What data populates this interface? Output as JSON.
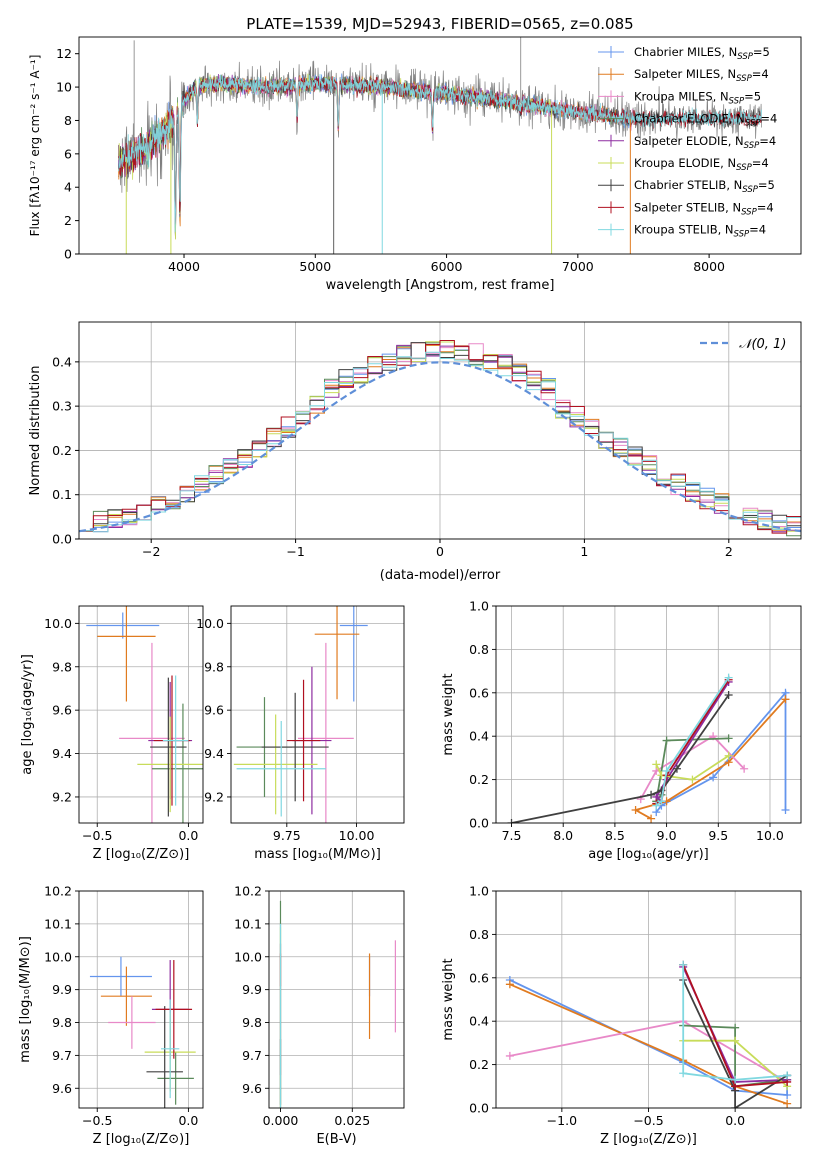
{
  "colors": {
    "chab_miles": "#6495ed",
    "salp_miles": "#e07b20",
    "krou_miles": "#e889c8",
    "chab_elodie": "#5b8a5b",
    "salp_elodie": "#8e2da0",
    "krou_elodie": "#c8dc5a",
    "chab_stelib": "#404040",
    "salp_stelib": "#b01020",
    "krou_stelib": "#80d8e0",
    "spectrum_gray": "#7f7f7f"
  },
  "chart_data": [
    {
      "type": "line",
      "id": "spectrum",
      "title": "PLATE=1539, MJD=52943, FIBERID=0565, z=0.085",
      "xlabel": "wavelength [Angstrom, rest frame]",
      "ylabel": "Flux [fλ10⁻¹⁷ erg cm⁻² s⁻¹ A⁻¹]",
      "xlim": [
        3200,
        8700
      ],
      "ylim": [
        0,
        13
      ],
      "xticks": [
        "4000",
        "5000",
        "6000",
        "7000",
        "8000"
      ],
      "yticks": [
        "0",
        "2",
        "4",
        "6",
        "8",
        "10",
        "12"
      ],
      "legend_position": "top-right",
      "legend": [
        {
          "label": "Chabrier MILES, N",
          "sub": "SSP",
          "suffix": "=5",
          "color": "chab_miles"
        },
        {
          "label": "Salpeter MILES, N",
          "sub": "SSP",
          "suffix": "=4",
          "color": "salp_miles"
        },
        {
          "label": "Kroupa MILES, N",
          "sub": "SSP",
          "suffix": "=5",
          "color": "krou_miles"
        },
        {
          "label": "Chabrier ELODIE, N",
          "sub": "SSP",
          "suffix": "=4",
          "color": "chab_elodie"
        },
        {
          "label": "Salpeter ELODIE, N",
          "sub": "SSP",
          "suffix": "=4",
          "color": "salp_elodie"
        },
        {
          "label": "Kroupa ELODIE, N",
          "sub": "SSP",
          "suffix": "=4",
          "color": "krou_elodie"
        },
        {
          "label": "Chabrier STELIB, N",
          "sub": "SSP",
          "suffix": "=5",
          "color": "chab_stelib"
        },
        {
          "label": "Salpeter STELIB, N",
          "sub": "SSP",
          "suffix": "=4",
          "color": "salp_stelib"
        },
        {
          "label": "Kroupa STELIB, N",
          "sub": "SSP",
          "suffix": "=4",
          "color": "krou_stelib"
        }
      ],
      "continuum": [
        [
          3500,
          5.5
        ],
        [
          3700,
          6.3
        ],
        [
          3900,
          7.8
        ],
        [
          4000,
          9.2
        ],
        [
          4100,
          10.1
        ],
        [
          4300,
          10.2
        ],
        [
          4600,
          10.0
        ],
        [
          5000,
          10.2
        ],
        [
          5500,
          10.0
        ],
        [
          6000,
          9.6
        ],
        [
          6500,
          9.1
        ],
        [
          7000,
          8.5
        ],
        [
          7400,
          8.1
        ]
      ],
      "absorption_lines": [
        [
          3934,
          1.5
        ],
        [
          3969,
          2.5
        ],
        [
          4102,
          7.8
        ],
        [
          4861,
          8.2
        ],
        [
          5175,
          7.5
        ],
        [
          5893,
          7.4
        ],
        [
          6563,
          8.6
        ]
      ],
      "spikes_down": [
        [
          3560,
          0
        ],
        [
          3900,
          0
        ],
        [
          5140,
          0
        ],
        [
          5510,
          0
        ],
        [
          6800,
          0
        ],
        [
          7400,
          0
        ]
      ],
      "spikes_up": [
        [
          3620,
          12.8
        ],
        [
          6565,
          13.0
        ],
        [
          7160,
          11.2
        ]
      ]
    },
    {
      "type": "histogram",
      "id": "residuals",
      "xlabel": "(data-model)/error",
      "ylabel": "Normed distribution",
      "xlim": [
        -2.5,
        2.5
      ],
      "ylim": [
        0,
        0.49
      ],
      "xticks": [
        "−2",
        "−1",
        "0",
        "1",
        "2"
      ],
      "yticks": [
        "0.0",
        "0.1",
        "0.2",
        "0.3",
        "0.4"
      ],
      "legend_position": "top-right",
      "legend_label": "𝒩(0, 1)",
      "bins": 50,
      "seeds": [
        11,
        23,
        37,
        41,
        53,
        67,
        79,
        83,
        97
      ]
    },
    {
      "type": "scatter",
      "id": "age_vs_z",
      "xlabel": "Z [log₁₀(Z/Z⊙)]",
      "ylabel": "age  [log₁₀(age/yr)]",
      "xlim": [
        -0.6,
        0.08
      ],
      "ylim": [
        9.08,
        10.08
      ],
      "xticks": [
        {
          "v": -0.5,
          "t": "−0.5"
        },
        {
          "v": 0.0,
          "t": "0.0"
        }
      ],
      "yticks": [
        {
          "v": 9.2,
          "t": "9.2"
        },
        {
          "v": 9.4,
          "t": "9.4"
        },
        {
          "v": 9.6,
          "t": "9.6"
        },
        {
          "v": 9.8,
          "t": "9.8"
        },
        {
          "v": 10.0,
          "t": "10.0"
        }
      ],
      "points": [
        {
          "c": "chab_miles",
          "x": -0.36,
          "xe": 0.2,
          "y": 9.99,
          "ye": 0.06
        },
        {
          "c": "salp_miles",
          "x": -0.34,
          "xe": 0.16,
          "y": 9.94,
          "ye": 0.3
        },
        {
          "c": "krou_miles",
          "x": -0.2,
          "xe": 0.18,
          "y": 9.47,
          "ye": 0.44
        },
        {
          "c": "chab_elodie",
          "x": -0.03,
          "xe": 0.17,
          "y": 9.33,
          "ye": 0.3
        },
        {
          "c": "salp_elodie",
          "x": -0.1,
          "xe": 0.12,
          "y": 9.46,
          "ye": 0.27
        },
        {
          "c": "krou_elodie",
          "x": -0.1,
          "xe": 0.18,
          "y": 9.35,
          "ye": 0.22
        },
        {
          "c": "chab_stelib",
          "x": -0.11,
          "xe": 0.1,
          "y": 9.43,
          "ye": 0.32
        },
        {
          "c": "salp_stelib",
          "x": -0.09,
          "xe": 0.1,
          "y": 9.46,
          "ye": 0.3
        },
        {
          "c": "krou_stelib",
          "x": -0.07,
          "xe": 0.07,
          "y": 9.46,
          "ye": 0.3
        }
      ]
    },
    {
      "type": "scatter",
      "id": "age_vs_mass",
      "xlabel": "mass [log₁₀(M/M⊙)]",
      "ylabel": "",
      "xlim": [
        9.55,
        10.17
      ],
      "ylim": [
        9.08,
        10.08
      ],
      "xticks": [
        {
          "v": 9.75,
          "t": "9.75"
        },
        {
          "v": 10.0,
          "t": "10.00"
        }
      ],
      "yticks": [
        {
          "v": 9.2,
          "t": "9.2"
        },
        {
          "v": 9.4,
          "t": "9.4"
        },
        {
          "v": 9.6,
          "t": "9.6"
        },
        {
          "v": 9.8,
          "t": "9.8"
        },
        {
          "v": 10.0,
          "t": "10.0"
        }
      ],
      "points": [
        {
          "c": "chab_miles",
          "x": 9.99,
          "xe": 0.05,
          "y": 9.99,
          "ye": 0.35
        },
        {
          "c": "salp_miles",
          "x": 9.93,
          "xe": 0.08,
          "y": 9.95,
          "ye": 0.3
        },
        {
          "c": "krou_miles",
          "x": 9.89,
          "xe": 0.1,
          "y": 9.47,
          "ye": 0.44
        },
        {
          "c": "chab_elodie",
          "x": 9.67,
          "xe": 0.1,
          "y": 9.43,
          "ye": 0.23
        },
        {
          "c": "salp_elodie",
          "x": 9.84,
          "xe": 0.07,
          "y": 9.46,
          "ye": 0.34
        },
        {
          "c": "krou_elodie",
          "x": 9.71,
          "xe": 0.15,
          "y": 9.35,
          "ye": 0.23
        },
        {
          "c": "chab_stelib",
          "x": 9.78,
          "xe": 0.12,
          "y": 9.43,
          "ye": 0.25
        },
        {
          "c": "salp_stelib",
          "x": 9.81,
          "xe": 0.06,
          "y": 9.46,
          "ye": 0.28
        },
        {
          "c": "krou_stelib",
          "x": 9.73,
          "xe": 0.16,
          "y": 9.33,
          "ye": 0.22
        }
      ]
    },
    {
      "type": "line",
      "id": "weight_vs_age",
      "xlabel": "age  [log₁₀(age/yr)]",
      "ylabel": "mass weight",
      "xlim": [
        7.35,
        10.3
      ],
      "ylim": [
        0,
        1
      ],
      "xticks": [
        {
          "v": 7.5,
          "t": "7.5"
        },
        {
          "v": 8.0,
          "t": "8.0"
        },
        {
          "v": 8.5,
          "t": "8.5"
        },
        {
          "v": 9.0,
          "t": "9.0"
        },
        {
          "v": 9.5,
          "t": "9.5"
        },
        {
          "v": 10.0,
          "t": "10.0"
        }
      ],
      "yticks": [
        {
          "v": 0,
          "t": "0.0"
        },
        {
          "v": 0.2,
          "t": "0.2"
        },
        {
          "v": 0.4,
          "t": "0.4"
        },
        {
          "v": 0.6,
          "t": "0.6"
        },
        {
          "v": 0.8,
          "t": "0.8"
        },
        {
          "v": 1.0,
          "t": "1.0"
        }
      ],
      "series": [
        {
          "c": "chab_miles",
          "x": [
            10.15,
            10.15,
            9.45,
            8.95,
            8.9
          ],
          "y": [
            0.06,
            0.6,
            0.21,
            0.08,
            0.05
          ]
        },
        {
          "c": "salp_miles",
          "x": [
            10.15,
            9.6,
            9.0,
            8.7,
            8.85
          ],
          "y": [
            0.57,
            0.28,
            0.1,
            0.06,
            0.02
          ]
        },
        {
          "c": "krou_miles",
          "x": [
            9.75,
            9.45,
            8.9,
            8.75
          ],
          "y": [
            0.25,
            0.4,
            0.24,
            0.11
          ]
        },
        {
          "c": "chab_elodie",
          "x": [
            9.6,
            9.0,
            8.9,
            8.95
          ],
          "y": [
            0.39,
            0.38,
            0.1,
            0.13
          ]
        },
        {
          "c": "salp_elodie",
          "x": [
            9.6,
            9.0,
            8.9,
            8.95
          ],
          "y": [
            0.65,
            0.2,
            0.12,
            0.1
          ]
        },
        {
          "c": "krou_elodie",
          "x": [
            9.6,
            9.25,
            8.95,
            8.9
          ],
          "y": [
            0.31,
            0.2,
            0.22,
            0.27
          ]
        },
        {
          "c": "chab_stelib",
          "x": [
            9.6,
            9.1,
            8.95,
            8.85,
            7.5
          ],
          "y": [
            0.59,
            0.25,
            0.15,
            0.13,
            0.0
          ]
        },
        {
          "c": "salp_stelib",
          "x": [
            9.6,
            9.0,
            8.95,
            8.9
          ],
          "y": [
            0.66,
            0.22,
            0.1,
            0.09
          ]
        },
        {
          "c": "krou_stelib",
          "x": [
            9.6,
            9.0,
            8.95,
            8.9
          ],
          "y": [
            0.67,
            0.24,
            0.1,
            0.08
          ]
        }
      ]
    },
    {
      "type": "scatter",
      "id": "mass_vs_z",
      "xlabel": "Z [log₁₀(Z/Z⊙)]",
      "ylabel": "mass [log₁₀(M/M⊙)]",
      "xlim": [
        -0.6,
        0.08
      ],
      "ylim": [
        9.54,
        10.2
      ],
      "xticks": [
        {
          "v": -0.5,
          "t": "−0.5"
        },
        {
          "v": 0.0,
          "t": "0.0"
        }
      ],
      "yticks": [
        {
          "v": 9.6,
          "t": "9.6"
        },
        {
          "v": 9.7,
          "t": "9.7"
        },
        {
          "v": 9.8,
          "t": "9.8"
        },
        {
          "v": 9.9,
          "t": "9.9"
        },
        {
          "v": 10.0,
          "t": "10.0"
        },
        {
          "v": 10.1,
          "t": "10.1"
        },
        {
          "v": 10.2,
          "t": "10.2"
        }
      ],
      "points": [
        {
          "c": "chab_miles",
          "x": -0.37,
          "xe": 0.17,
          "y": 9.94,
          "ye": 0.06
        },
        {
          "c": "salp_miles",
          "x": -0.34,
          "xe": 0.14,
          "y": 9.88,
          "ye": 0.09
        },
        {
          "c": "krou_miles",
          "x": -0.31,
          "xe": 0.13,
          "y": 9.8,
          "ye": 0.08
        },
        {
          "c": "chab_elodie",
          "x": -0.07,
          "xe": 0.1,
          "y": 9.63,
          "ye": 0.08
        },
        {
          "c": "salp_elodie",
          "x": -0.1,
          "xe": 0.1,
          "y": 9.84,
          "ye": 0.15
        },
        {
          "c": "krou_elodie",
          "x": -0.1,
          "xe": 0.14,
          "y": 9.71,
          "ye": 0.12
        },
        {
          "c": "chab_stelib",
          "x": -0.13,
          "xe": 0.1,
          "y": 9.65,
          "ye": 0.2
        },
        {
          "c": "salp_stelib",
          "x": -0.08,
          "xe": 0.1,
          "y": 9.84,
          "ye": 0.15
        },
        {
          "c": "krou_stelib",
          "x": -0.1,
          "xe": 0.05,
          "y": 9.72,
          "ye": 0.15
        }
      ]
    },
    {
      "type": "scatter",
      "id": "mass_vs_ebv",
      "xlabel": "E(B-V)",
      "ylabel": "",
      "xlim": [
        -0.004,
        0.043
      ],
      "ylim": [
        9.54,
        10.2
      ],
      "xticks": [
        {
          "v": 0.0,
          "t": "0.000"
        },
        {
          "v": 0.025,
          "t": "0.025"
        }
      ],
      "yticks": [
        {
          "v": 9.6,
          "t": "9.6"
        },
        {
          "v": 9.7,
          "t": "9.7"
        },
        {
          "v": 9.8,
          "t": "9.8"
        },
        {
          "v": 9.9,
          "t": "9.9"
        },
        {
          "v": 10.0,
          "t": "10.0"
        },
        {
          "v": 10.1,
          "t": "10.1"
        },
        {
          "v": 10.2,
          "t": "10.2"
        }
      ],
      "points": [
        {
          "c": "chab_miles",
          "x": 0.031,
          "xe": 0.0,
          "y": 9.94,
          "ye": 0.06
        },
        {
          "c": "salp_miles",
          "x": 0.031,
          "xe": 0.0,
          "y": 9.88,
          "ye": 0.13
        },
        {
          "c": "krou_miles",
          "x": 0.04,
          "xe": 0.0,
          "y": 9.91,
          "ye": 0.14
        },
        {
          "c": "chab_elodie",
          "x": 0.0,
          "xe": 0.0,
          "y": 9.85,
          "ye": 0.32
        },
        {
          "c": "salp_elodie",
          "x": 0.0,
          "xe": 0.0,
          "y": 9.84,
          "ye": 0.2
        },
        {
          "c": "krou_elodie",
          "x": 0.0,
          "xe": 0.0,
          "y": 9.71,
          "ye": 0.38
        },
        {
          "c": "chab_stelib",
          "x": 0.0,
          "xe": 0.0,
          "y": 9.65,
          "ye": 0.1
        },
        {
          "c": "salp_stelib",
          "x": 0.0,
          "xe": 0.0,
          "y": 9.96,
          "ye": 0.05
        },
        {
          "c": "krou_stelib",
          "x": 0.0,
          "xe": 0.0,
          "y": 9.75,
          "ye": 0.35
        }
      ]
    },
    {
      "type": "line",
      "id": "weight_vs_z",
      "xlabel": "Z [log₁₀(Z/Z⊙)]",
      "ylabel": "mass weight",
      "xlim": [
        -1.38,
        0.38
      ],
      "ylim": [
        0,
        1
      ],
      "xticks": [
        {
          "v": -1.0,
          "t": "−1.0"
        },
        {
          "v": -0.5,
          "t": "−0.5"
        },
        {
          "v": 0.0,
          "t": "0.0"
        }
      ],
      "yticks": [
        {
          "v": 0,
          "t": "0.0"
        },
        {
          "v": 0.2,
          "t": "0.2"
        },
        {
          "v": 0.4,
          "t": "0.4"
        },
        {
          "v": 0.6,
          "t": "0.6"
        },
        {
          "v": 0.8,
          "t": "0.8"
        },
        {
          "v": 1.0,
          "t": "1.0"
        }
      ],
      "series": [
        {
          "c": "chab_miles",
          "x": [
            -1.3,
            -0.3,
            0.0,
            0.3,
            0.3
          ],
          "y": [
            0.59,
            0.21,
            0.08,
            0.06,
            0.15
          ]
        },
        {
          "c": "salp_miles",
          "x": [
            -1.3,
            -0.3,
            0.0,
            0.3
          ],
          "y": [
            0.57,
            0.22,
            0.1,
            0.02
          ]
        },
        {
          "c": "krou_miles",
          "x": [
            -1.3,
            -0.3,
            0.3
          ],
          "y": [
            0.24,
            0.4,
            0.12
          ]
        },
        {
          "c": "chab_elodie",
          "x": [
            -0.3,
            0.0,
            0.0,
            0.3
          ],
          "y": [
            0.38,
            0.37,
            0.1,
            0.13
          ]
        },
        {
          "c": "salp_elodie",
          "x": [
            -0.3,
            0.0,
            0.3
          ],
          "y": [
            0.65,
            0.12,
            0.13
          ]
        },
        {
          "c": "krou_elodie",
          "x": [
            -0.3,
            0.0,
            0.3
          ],
          "y": [
            0.31,
            0.31,
            0.1
          ]
        },
        {
          "c": "chab_stelib",
          "x": [
            -0.3,
            0.0,
            0.0,
            0.3
          ],
          "y": [
            0.59,
            0.08,
            0.0,
            0.15
          ]
        },
        {
          "c": "salp_stelib",
          "x": [
            -0.3,
            0.0,
            0.3
          ],
          "y": [
            0.66,
            0.1,
            0.12
          ]
        },
        {
          "c": "krou_stelib",
          "x": [
            -0.3,
            -0.3,
            0.0,
            0.3
          ],
          "y": [
            0.66,
            0.16,
            0.13,
            0.15
          ]
        }
      ]
    }
  ]
}
